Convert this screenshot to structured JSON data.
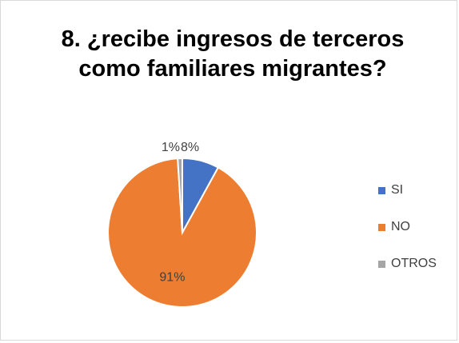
{
  "chart_data": {
    "type": "pie",
    "title": "8. ¿recibe ingresos de terceros como familiares migrantes?",
    "categories": [
      "SI",
      "NO",
      "OTROS"
    ],
    "values": [
      8,
      91,
      1
    ],
    "data_labels": [
      "8%",
      "91%",
      "1%"
    ],
    "colors": [
      "#4472C4",
      "#ED7D31",
      "#A5A5A5"
    ],
    "legend_position": "right"
  }
}
